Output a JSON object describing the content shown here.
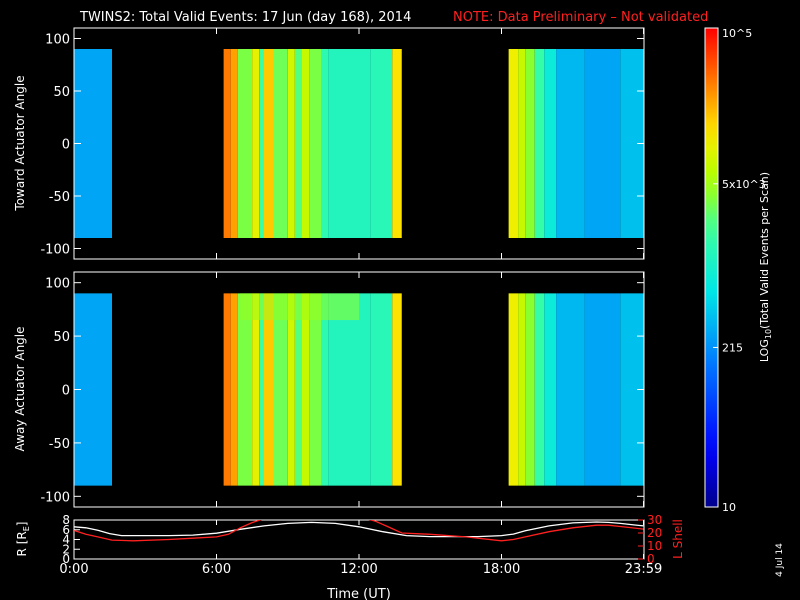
{
  "title": "TWINS2: Total Valid Events: 17 Jun (day 168), 2014",
  "note": "NOTE: Data Preliminary – Not validated",
  "date_stamp": "4 Jul 14",
  "colorbar": {
    "label": "LOG10(Total Valid Events per Scan)",
    "label_main": "LOG",
    "label_sub": "10",
    "label_rest": "(Total Valid Events per Scan)",
    "range": [
      10,
      100000
    ],
    "scale": "log",
    "tick_labels": [
      {
        "text": "10",
        "value": 10
      },
      {
        "text": "215",
        "value": 215
      },
      {
        "text": "5x10^3",
        "value": 5000
      },
      {
        "text": "10^5",
        "value": 100000
      }
    ],
    "colormap": "rainbow"
  },
  "chart_data": [
    {
      "type": "heatmap",
      "name": "toward",
      "ylabel": "Toward Actuator Angle",
      "xlim": [
        0,
        24
      ],
      "ylim": [
        -110,
        110
      ],
      "y_data_range": [
        -90,
        90
      ],
      "yticks": [
        100,
        50,
        0,
        -50,
        -100
      ],
      "xticks": [
        "0:00",
        "6:00",
        "12:00",
        "18:00",
        "23:59"
      ],
      "x_tick_values": [
        0,
        6,
        12,
        18,
        23.98
      ],
      "coverage_hours": [
        [
          0.0,
          1.6
        ],
        [
          6.3,
          13.8
        ],
        [
          18.3,
          23.98
        ]
      ],
      "column_log10_counts": [
        {
          "from": 0.0,
          "to": 1.6,
          "value": 2.45
        },
        {
          "from": 6.3,
          "to": 6.6,
          "value": 4.55
        },
        {
          "from": 6.6,
          "to": 6.9,
          "value": 4.4
        },
        {
          "from": 6.9,
          "to": 7.5,
          "value": 3.55
        },
        {
          "from": 7.5,
          "to": 7.8,
          "value": 4.0
        },
        {
          "from": 7.8,
          "to": 8.0,
          "value": 3.3
        },
        {
          "from": 8.0,
          "to": 8.4,
          "value": 4.25
        },
        {
          "from": 8.4,
          "to": 9.0,
          "value": 3.5
        },
        {
          "from": 9.0,
          "to": 9.3,
          "value": 3.9
        },
        {
          "from": 9.3,
          "to": 9.6,
          "value": 3.4
        },
        {
          "from": 9.6,
          "to": 9.9,
          "value": 3.85
        },
        {
          "from": 9.9,
          "to": 10.4,
          "value": 3.55
        },
        {
          "from": 10.4,
          "to": 10.7,
          "value": 3.2
        },
        {
          "from": 10.7,
          "to": 12.5,
          "value": 3.1
        },
        {
          "from": 12.5,
          "to": 13.4,
          "value": 3.15
        },
        {
          "from": 13.4,
          "to": 13.8,
          "value": 4.15
        },
        {
          "from": 18.3,
          "to": 18.7,
          "value": 4.05
        },
        {
          "from": 18.7,
          "to": 19.0,
          "value": 3.85
        },
        {
          "from": 19.0,
          "to": 19.4,
          "value": 3.6
        },
        {
          "from": 19.4,
          "to": 19.8,
          "value": 3.25
        },
        {
          "from": 19.8,
          "to": 20.3,
          "value": 2.9
        },
        {
          "from": 20.3,
          "to": 21.5,
          "value": 2.55
        },
        {
          "from": 21.5,
          "to": 23.0,
          "value": 2.45
        },
        {
          "from": 23.0,
          "to": 23.98,
          "value": 2.6
        }
      ]
    },
    {
      "type": "heatmap",
      "name": "away",
      "ylabel": "Away Actuator Angle",
      "xlim": [
        0,
        24
      ],
      "ylim": [
        -110,
        110
      ],
      "y_data_range": [
        -90,
        90
      ],
      "yticks": [
        100,
        50,
        0,
        -50,
        -100
      ],
      "xticks": [
        "0:00",
        "6:00",
        "12:00",
        "18:00",
        "23:59"
      ],
      "x_tick_values": [
        0,
        6,
        12,
        18,
        23.98
      ],
      "coverage_hours": [
        [
          0.0,
          1.6
        ],
        [
          6.3,
          13.8
        ],
        [
          18.3,
          23.98
        ]
      ],
      "column_log10_counts": [
        {
          "from": 0.0,
          "to": 1.6,
          "value": 2.45
        },
        {
          "from": 6.3,
          "to": 6.6,
          "value": 4.55
        },
        {
          "from": 6.6,
          "to": 6.9,
          "value": 4.4
        },
        {
          "from": 6.9,
          "to": 7.5,
          "value": 3.55
        },
        {
          "from": 7.5,
          "to": 7.8,
          "value": 4.0
        },
        {
          "from": 7.8,
          "to": 8.0,
          "value": 3.3
        },
        {
          "from": 8.0,
          "to": 8.4,
          "value": 4.25
        },
        {
          "from": 8.4,
          "to": 9.0,
          "value": 3.5
        },
        {
          "from": 9.0,
          "to": 9.3,
          "value": 3.9
        },
        {
          "from": 9.3,
          "to": 9.6,
          "value": 3.4
        },
        {
          "from": 9.6,
          "to": 9.9,
          "value": 3.85
        },
        {
          "from": 9.9,
          "to": 10.4,
          "value": 3.55
        },
        {
          "from": 10.4,
          "to": 10.7,
          "value": 3.2
        },
        {
          "from": 10.7,
          "to": 12.5,
          "value": 3.1
        },
        {
          "from": 12.5,
          "to": 13.4,
          "value": 3.15
        },
        {
          "from": 13.4,
          "to": 13.8,
          "value": 4.15
        },
        {
          "from": 18.3,
          "to": 18.7,
          "value": 4.05
        },
        {
          "from": 18.7,
          "to": 19.0,
          "value": 3.85
        },
        {
          "from": 19.0,
          "to": 19.4,
          "value": 3.6
        },
        {
          "from": 19.4,
          "to": 19.8,
          "value": 3.25
        },
        {
          "from": 19.8,
          "to": 20.3,
          "value": 2.9
        },
        {
          "from": 20.3,
          "to": 21.5,
          "value": 2.55
        },
        {
          "from": 21.5,
          "to": 23.0,
          "value": 2.45
        },
        {
          "from": 23.0,
          "to": 23.98,
          "value": 2.6
        }
      ],
      "enhanced_band": {
        "angle_from": 65,
        "angle_to": 90,
        "hours_from": 7.0,
        "hours_to": 12.0,
        "log10_value": 3.65
      }
    },
    {
      "type": "line",
      "name": "orbit",
      "ylabel_left": "R [RE]",
      "ylabel_left_main": "R [R",
      "ylabel_left_sub": "E",
      "ylabel_left_end": "]",
      "ylabel_right": "L Shell",
      "xlabel": "Time (UT)",
      "xlim": [
        0,
        24
      ],
      "left_ylim": [
        0,
        8
      ],
      "left_yticks": [
        0,
        2,
        4,
        6,
        8
      ],
      "right_ylim": [
        0,
        30
      ],
      "right_yticks": [
        0,
        10,
        20,
        30
      ],
      "xticks": [
        "0:00",
        "6:00",
        "12:00",
        "18:00",
        "23:59"
      ],
      "x_tick_values": [
        0,
        6,
        12,
        18,
        23.98
      ],
      "series": [
        {
          "name": "R [RE]",
          "color": "#ffffff",
          "axis": "left",
          "x": [
            0,
            0.5,
            1.0,
            1.5,
            2.0,
            3.0,
            4.0,
            5.0,
            6.0,
            7.0,
            8.0,
            9.0,
            10.0,
            11.0,
            12.0,
            13.0,
            14.0,
            15.0,
            16.0,
            17.0,
            18.0,
            18.5,
            19.0,
            20.0,
            21.0,
            22.0,
            22.5,
            23.0,
            23.98
          ],
          "y": [
            6.6,
            6.4,
            5.9,
            5.2,
            4.8,
            4.8,
            4.8,
            4.9,
            5.3,
            6.1,
            6.8,
            7.3,
            7.5,
            7.3,
            6.6,
            5.6,
            4.8,
            4.6,
            4.6,
            4.6,
            4.8,
            5.1,
            5.8,
            6.8,
            7.4,
            7.6,
            7.5,
            7.3,
            6.8
          ]
        },
        {
          "name": "L Shell",
          "color": "#ff2020",
          "axis": "right",
          "x": [
            0,
            0.5,
            1.0,
            1.6,
            2.5,
            4.0,
            5.0,
            6.0,
            6.5,
            7.0,
            7.5,
            8.0,
            12.3,
            12.7,
            13.2,
            13.8,
            15.0,
            16.5,
            18.0,
            18.5,
            19.0,
            20.0,
            21.0,
            22.0,
            22.5,
            23.0,
            23.98
          ],
          "y": [
            22,
            19,
            17,
            14.5,
            14,
            15,
            16,
            17,
            19,
            24,
            28,
            31,
            31,
            29,
            25,
            20,
            19,
            17,
            14,
            15,
            17,
            21,
            24,
            26,
            26,
            25,
            23
          ]
        }
      ]
    }
  ]
}
